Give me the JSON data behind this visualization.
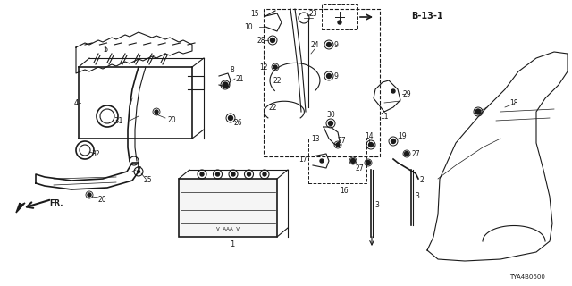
{
  "bg_color": "#ffffff",
  "line_color": "#1a1a1a",
  "fig_width": 6.4,
  "fig_height": 3.2,
  "dpi": 100,
  "diagram_id": "TYA4B0600",
  "ref_label": "B-13-1"
}
